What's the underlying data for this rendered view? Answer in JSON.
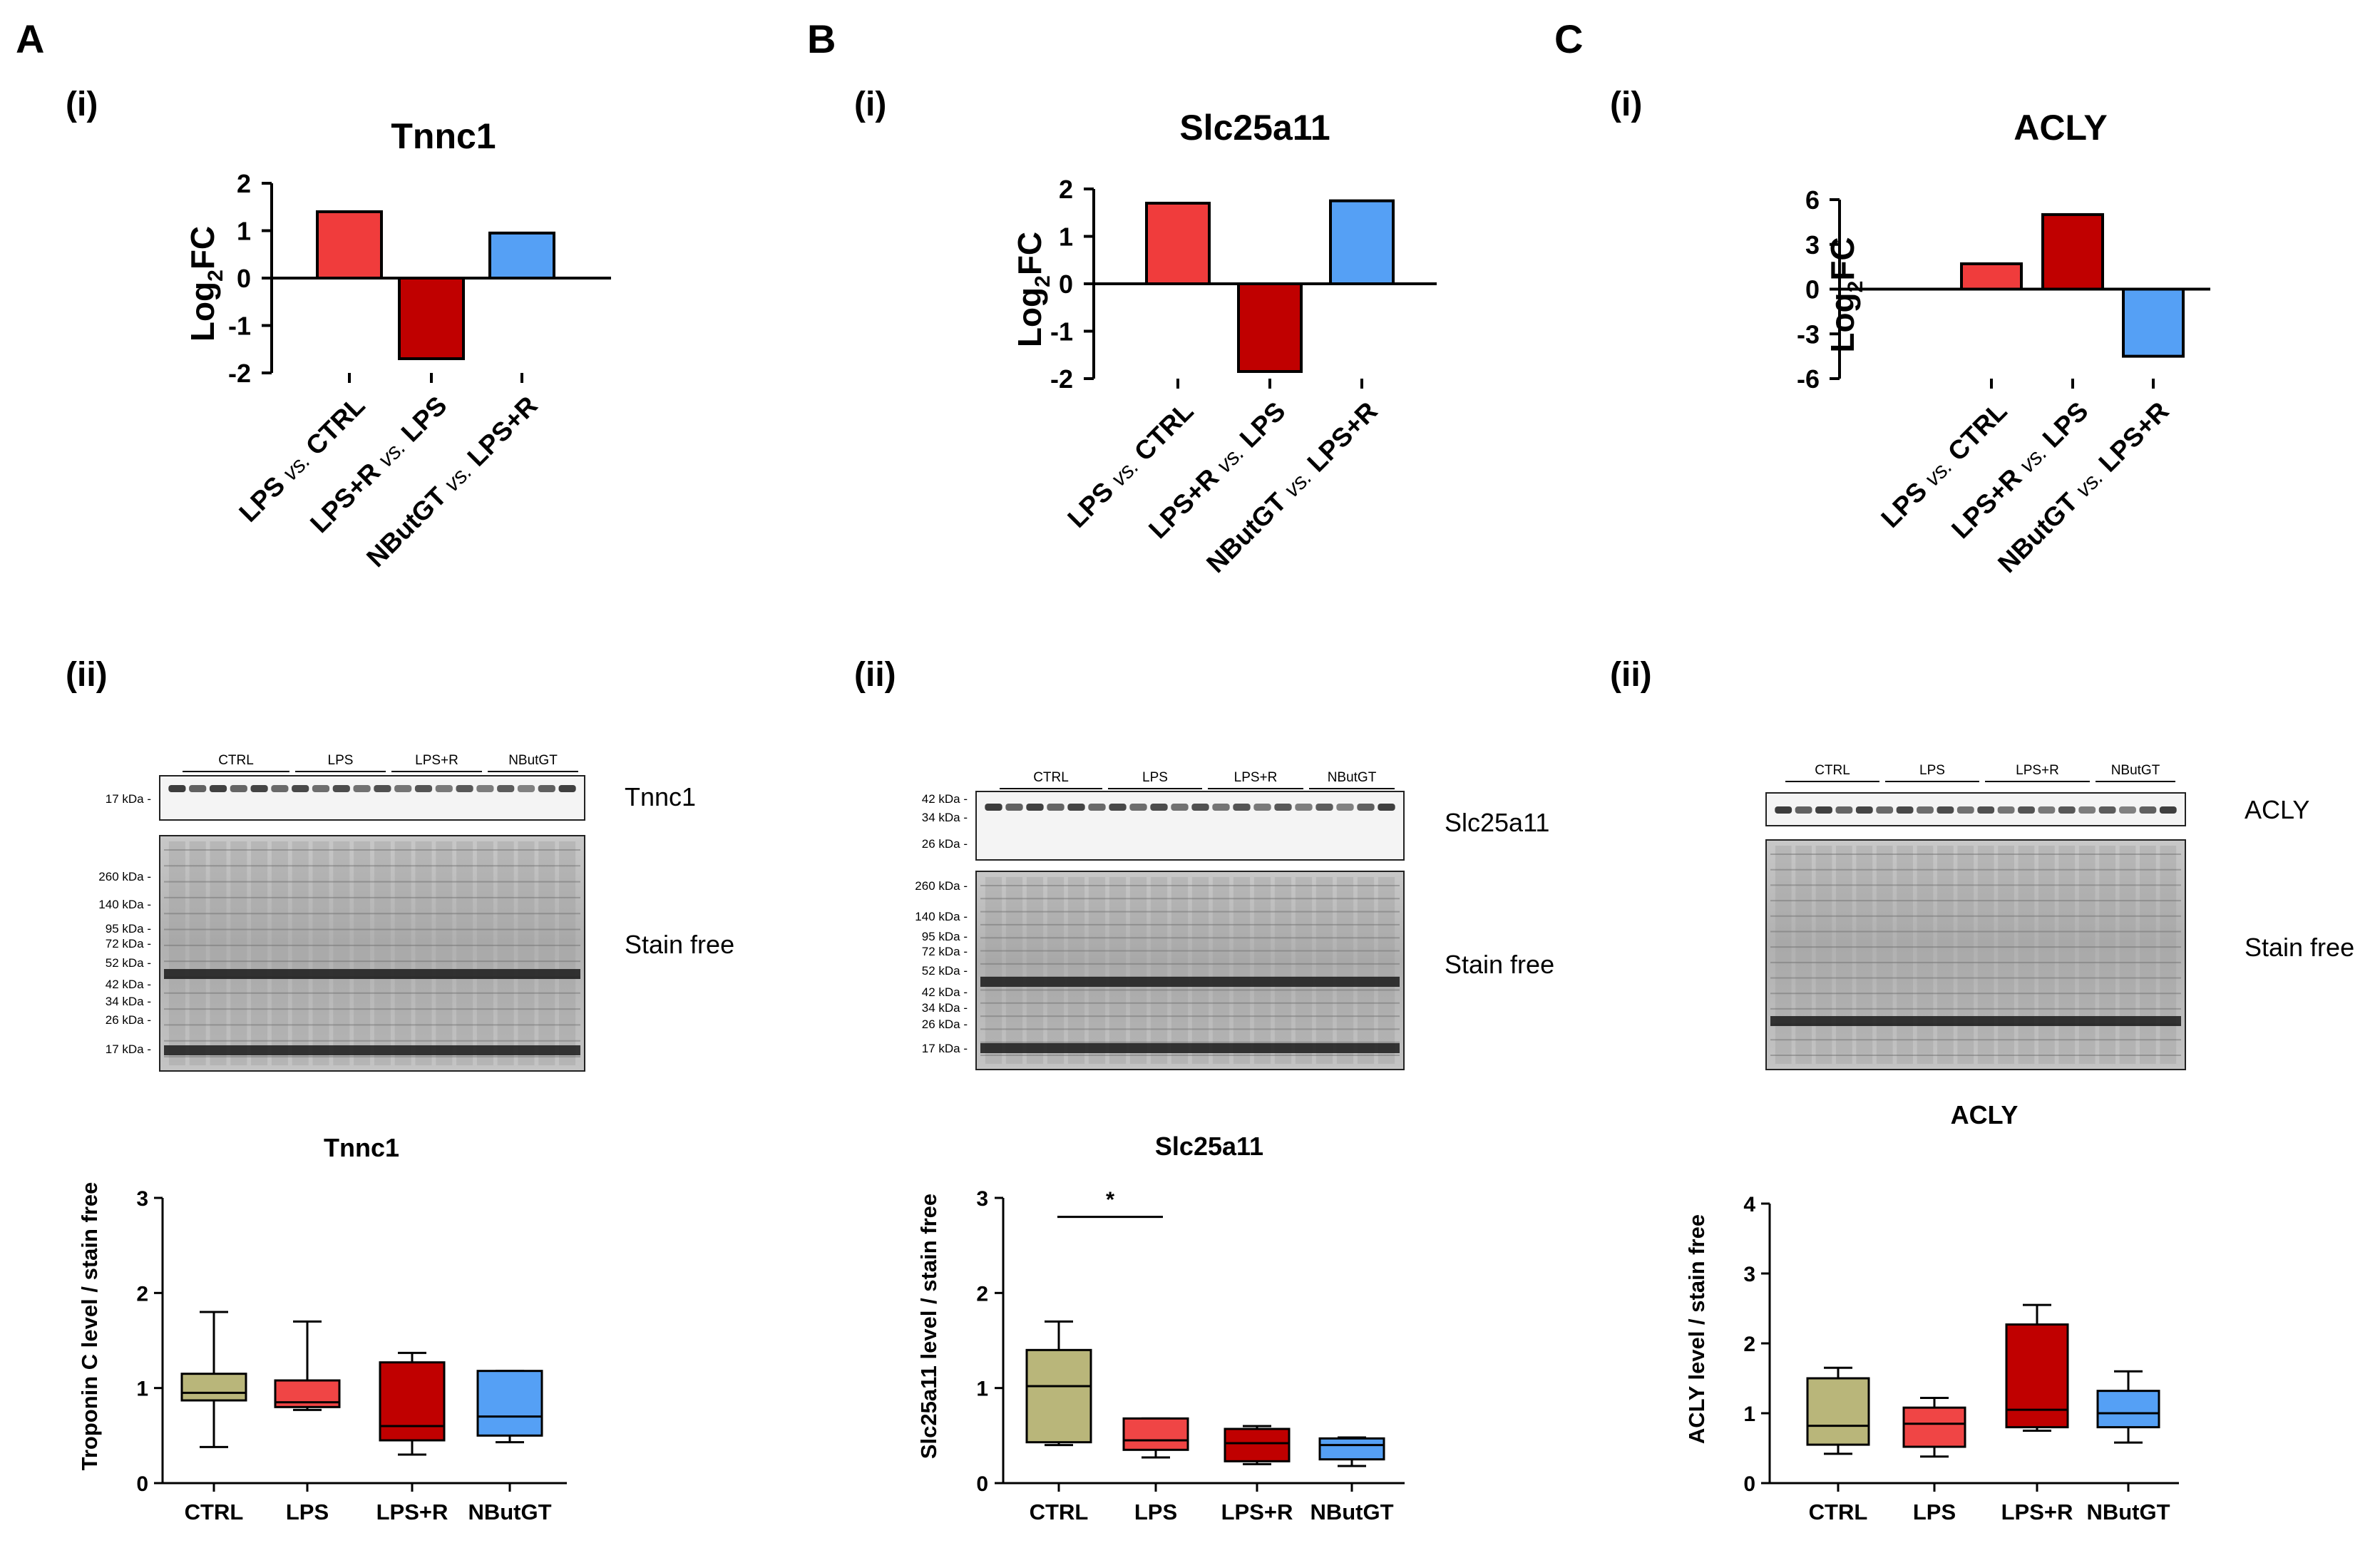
{
  "panels": [
    {
      "letter": "A",
      "sub_i": "(i)",
      "sub_ii": "(ii)",
      "blot": {
        "groups": [
          "CTRL",
          "LPS",
          "LPS+R",
          "NButGT"
        ],
        "target_label": "Tnnc1",
        "target_markers": [
          "17 kDa -"
        ],
        "stain_label": "Stain free",
        "stain_markers": [
          "260 kDa -",
          "140 kDa -",
          "95 kDa -",
          "72 kDa -",
          "52 kDa -",
          "42 kDa -",
          "34 kDa -",
          "26 kDa -",
          "17 kDa -"
        ]
      }
    },
    {
      "letter": "B",
      "sub_i": "(i)",
      "sub_ii": "(ii)",
      "blot": {
        "groups": [
          "CTRL",
          "LPS",
          "LPS+R",
          "NButGT"
        ],
        "target_label": "Slc25a11",
        "target_markers": [
          "42 kDa -",
          "34 kDa -",
          "26 kDa -"
        ],
        "stain_label": "Stain free",
        "stain_markers": [
          "260 kDa -",
          "140 kDa -",
          "95 kDa -",
          "72 kDa -",
          "52 kDa -",
          "42 kDa -",
          "34 kDa -",
          "26 kDa -",
          "17 kDa -"
        ]
      }
    },
    {
      "letter": "C",
      "sub_i": "(i)",
      "sub_ii": "(ii)",
      "blot": {
        "groups": [
          "CTRL",
          "LPS",
          "LPS+R",
          "NButGT"
        ],
        "target_label": "ACLY",
        "target_markers": [],
        "stain_label": "Stain free",
        "stain_markers": []
      }
    }
  ],
  "colors": {
    "bar_red": "#f03c3c",
    "bar_darkred": "#c00000",
    "bar_blue": "#55a0f5",
    "box_ctrl": "#b9b67a",
    "box_lps": "#f04545",
    "box_lpsr": "#c00000",
    "box_nbut": "#55a0f5"
  },
  "chart_data": [
    {
      "type": "bar",
      "panel": "A(i)",
      "title": "Tnnc1",
      "ylabel": "Log2FC",
      "ylim": [
        -2,
        2
      ],
      "yticks": [
        "2",
        "1",
        "0",
        "-1",
        "-2"
      ],
      "categories": [
        {
          "pre": "LPS ",
          "vs": "vs.",
          "post": " CTRL"
        },
        {
          "pre": "LPS+R ",
          "vs": "vs.",
          "post": " LPS"
        },
        {
          "pre": "NButGT ",
          "vs": "vs.",
          "post": " LPS+R"
        }
      ],
      "values": [
        1.4,
        -1.7,
        0.95
      ]
    },
    {
      "type": "bar",
      "panel": "B(i)",
      "title": "Slc25a11",
      "ylabel": "Log2FC",
      "ylim": [
        -2,
        2
      ],
      "yticks": [
        "2",
        "1",
        "0",
        "-1",
        "-2"
      ],
      "categories": [
        {
          "pre": "LPS ",
          "vs": "vs.",
          "post": " CTRL"
        },
        {
          "pre": "LPS+R ",
          "vs": "vs.",
          "post": " LPS"
        },
        {
          "pre": "NButGT ",
          "vs": "vs.",
          "post": " LPS+R"
        }
      ],
      "values": [
        1.7,
        -1.85,
        1.75
      ]
    },
    {
      "type": "bar",
      "panel": "C(i)",
      "title": "ACLY",
      "ylabel": "Log2FC",
      "ylim": [
        -6,
        6
      ],
      "yticks": [
        "6",
        "3",
        "0",
        "-3",
        "-6"
      ],
      "categories": [
        {
          "pre": "LPS ",
          "vs": "vs.",
          "post": " CTRL"
        },
        {
          "pre": "LPS+R ",
          "vs": "vs.",
          "post": " LPS"
        },
        {
          "pre": "NButGT ",
          "vs": "vs.",
          "post": " LPS+R"
        }
      ],
      "values": [
        1.7,
        5.0,
        -4.5
      ]
    },
    {
      "type": "box",
      "panel": "A(ii)",
      "title": "Tnnc1",
      "ylabel": "Troponin C level / stain free",
      "ylim": [
        0,
        3
      ],
      "yticks": [
        "3",
        "2",
        "1",
        "0"
      ],
      "categories": [
        "CTRL",
        "LPS",
        "LPS+R",
        "NButGT"
      ],
      "boxes": [
        {
          "min": 0.38,
          "q1": 0.87,
          "median": 0.95,
          "q3": 1.15,
          "max": 1.8
        },
        {
          "min": 0.77,
          "q1": 0.8,
          "median": 0.85,
          "q3": 1.08,
          "max": 1.7
        },
        {
          "min": 0.3,
          "q1": 0.45,
          "median": 0.6,
          "q3": 1.27,
          "max": 1.37
        },
        {
          "min": 0.43,
          "q1": 0.5,
          "median": 0.7,
          "q3": 1.18,
          "max": 1.18
        }
      ],
      "significance": null
    },
    {
      "type": "box",
      "panel": "B(ii)",
      "title": "Slc25a11",
      "ylabel": "Slc25a11 level / stain free",
      "ylim": [
        0,
        3
      ],
      "yticks": [
        "3",
        "2",
        "1",
        "0"
      ],
      "categories": [
        "CTRL",
        "LPS",
        "LPS+R",
        "NButGT"
      ],
      "boxes": [
        {
          "min": 0.4,
          "q1": 0.43,
          "median": 1.02,
          "q3": 1.4,
          "max": 1.7
        },
        {
          "min": 0.27,
          "q1": 0.35,
          "median": 0.45,
          "q3": 0.68,
          "max": 0.68
        },
        {
          "min": 0.2,
          "q1": 0.23,
          "median": 0.42,
          "q3": 0.57,
          "max": 0.6
        },
        {
          "min": 0.18,
          "q1": 0.25,
          "median": 0.4,
          "q3": 0.47,
          "max": 0.48
        }
      ],
      "significance": {
        "from": "CTRL",
        "to": "LPS",
        "label": "*"
      }
    },
    {
      "type": "box",
      "panel": "C(ii)",
      "title": "ACLY",
      "ylabel": "ACLY level / stain free",
      "ylim": [
        0,
        4
      ],
      "yticks": [
        "4",
        "3",
        "2",
        "1",
        "0"
      ],
      "categories": [
        "CTRL",
        "LPS",
        "LPS+R",
        "NButGT"
      ],
      "boxes": [
        {
          "min": 0.42,
          "q1": 0.55,
          "median": 0.82,
          "q3": 1.5,
          "max": 1.65
        },
        {
          "min": 0.38,
          "q1": 0.52,
          "median": 0.85,
          "q3": 1.08,
          "max": 1.22
        },
        {
          "min": 0.75,
          "q1": 0.8,
          "median": 1.05,
          "q3": 2.27,
          "max": 2.55
        },
        {
          "min": 0.58,
          "q1": 0.8,
          "median": 1.0,
          "q3": 1.32,
          "max": 1.6
        }
      ],
      "significance": null
    }
  ]
}
